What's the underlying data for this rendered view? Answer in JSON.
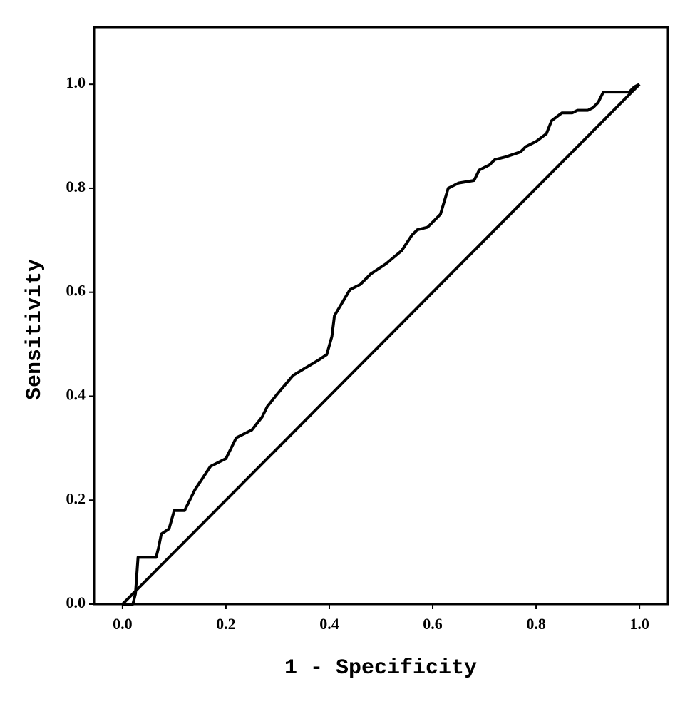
{
  "chart_data": {
    "type": "line",
    "x_label": "1 - Specificity",
    "y_label": "Sensitivity",
    "xlim": [
      -0.055,
      1.055
    ],
    "ylim": [
      0,
      1.11
    ],
    "xticks": [
      {
        "value": 0,
        "label": "0.0"
      },
      0.2,
      0.4,
      0.6,
      0.8,
      {
        "value": 1,
        "label": "1.0"
      }
    ],
    "yticks": [
      {
        "value": 0,
        "label": "0.0"
      },
      0.2,
      0.4,
      0.6,
      0.8,
      {
        "value": 1,
        "label": "1.0"
      }
    ],
    "series": [
      {
        "color": "#000000",
        "x": [
          0,
          0.02,
          0.025,
          0.03,
          0.065,
          0.07,
          0.075,
          0.09,
          0.1,
          0.12,
          0.13,
          0.14,
          0.17,
          0.2,
          0.22,
          0.25,
          0.27,
          0.28,
          0.3,
          0.33,
          0.38,
          0.395,
          0.405,
          0.41,
          0.44,
          0.46,
          0.48,
          0.51,
          0.54,
          0.56,
          0.57,
          0.59,
          0.615,
          0.63,
          0.65,
          0.68,
          0.69,
          0.71,
          0.72,
          0.74,
          0.77,
          0.78,
          0.8,
          0.82,
          0.83,
          0.85,
          0.87,
          0.88,
          0.9,
          0.91,
          0.92,
          0.93,
          0.97,
          0.98,
          0.99,
          1.0
        ],
        "values": [
          0,
          0,
          0.02,
          0.09,
          0.09,
          0.11,
          0.135,
          0.145,
          0.18,
          0.18,
          0.2,
          0.22,
          0.265,
          0.28,
          0.32,
          0.335,
          0.36,
          0.38,
          0.405,
          0.44,
          0.47,
          0.48,
          0.515,
          0.555,
          0.605,
          0.615,
          0.635,
          0.655,
          0.68,
          0.71,
          0.72,
          0.725,
          0.75,
          0.8,
          0.81,
          0.815,
          0.835,
          0.845,
          0.855,
          0.86,
          0.87,
          0.88,
          0.89,
          0.905,
          0.93,
          0.945,
          0.945,
          0.95,
          0.95,
          0.955,
          0.965,
          0.985,
          0.985,
          0.985,
          0.995,
          1.0
        ]
      },
      {
        "color": "#000000",
        "x": [
          0,
          1
        ],
        "values": [
          0,
          1
        ]
      }
    ]
  }
}
